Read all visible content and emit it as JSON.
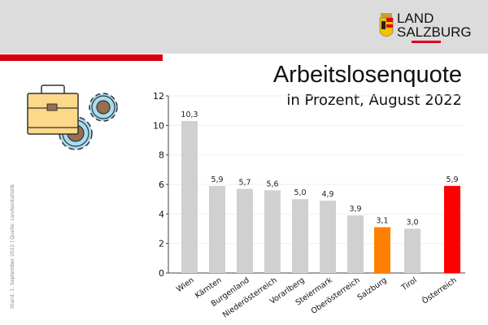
{
  "header": {
    "logo_line1": "LAND",
    "logo_line2": "SALZBURG"
  },
  "source": "Stand: 1. September 2022 | Quelle: Landesstatistik",
  "icons": [
    "briefcase-icon",
    "gears-icon"
  ],
  "colors": {
    "default_bar": "#d0d0d0",
    "salzburg": "#ff8000",
    "oesterreich": "#ff0000",
    "accent_red": "#d7000f"
  },
  "chart_data": {
    "type": "bar",
    "title": "Arbeitslosenquote",
    "subtitle": "in Prozent, August 2022",
    "categories": [
      "Wien",
      "Kärnten",
      "Burgenland",
      "Niederösterreich",
      "Vorarlberg",
      "Steiermark",
      "Oberösterreich",
      "Salzburg",
      "Tirol",
      "Österreich"
    ],
    "values": [
      10.3,
      5.9,
      5.7,
      5.6,
      5.0,
      4.9,
      3.9,
      3.1,
      3.0,
      5.9
    ],
    "data_labels": [
      "10,3",
      "5,9",
      "5,7",
      "5,6",
      "5,0",
      "4,9",
      "3,9",
      "3,1",
      "3,0",
      "5,9"
    ],
    "ylim": [
      0,
      12
    ],
    "yticks": [
      "0",
      "2",
      "4",
      "6",
      "8",
      "10",
      "12"
    ],
    "grid": true,
    "highlight": {
      "Salzburg": "#ff8000",
      "Österreich": "#ff0000"
    }
  }
}
